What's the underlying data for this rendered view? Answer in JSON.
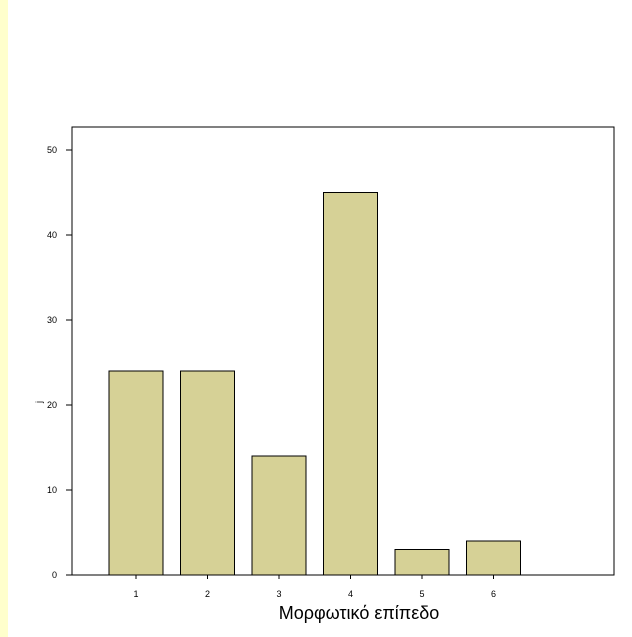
{
  "chart_data": {
    "type": "bar",
    "categories": [
      "1",
      "2",
      "3",
      "4",
      "5",
      "6"
    ],
    "values": [
      24,
      24,
      14,
      45,
      3,
      4
    ],
    "title": "",
    "xlabel": "Μορφωτικό επίπεδο",
    "ylabel": "j",
    "ylim": [
      0,
      50
    ],
    "yticks": [
      0,
      10,
      20,
      30,
      40,
      50
    ],
    "grid": false,
    "colors": {
      "bar_fill": "#d6d196",
      "bar_stroke": "#000000",
      "page_bg": "#ffffcc",
      "plot_bg": "#ffffff"
    }
  }
}
